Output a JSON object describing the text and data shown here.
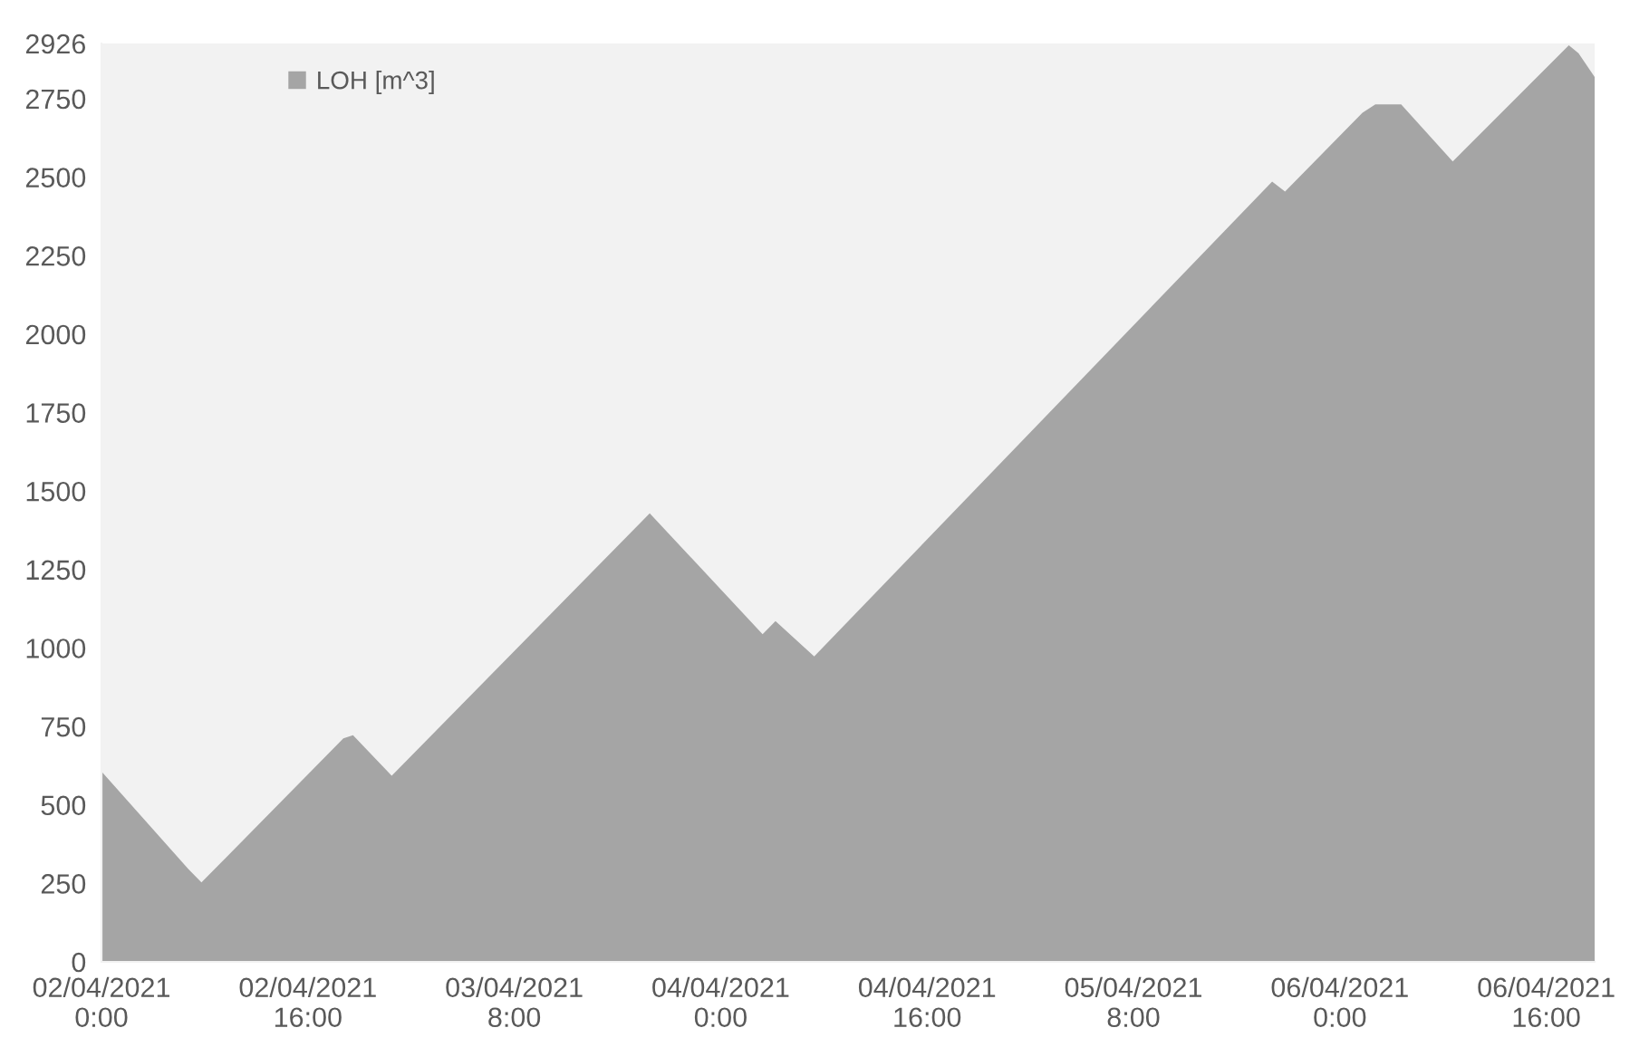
{
  "chart_data": {
    "type": "area",
    "x": [
      "2021-04-02T00:00",
      "2021-04-02T06:45",
      "2021-04-02T07:45",
      "2021-04-02T18:45",
      "2021-04-02T19:30",
      "2021-04-02T22:30",
      "2021-04-03T18:30",
      "2021-04-04T03:15",
      "2021-04-04T04:15",
      "2021-04-04T07:15",
      "2021-04-05T18:45",
      "2021-04-05T19:45",
      "2021-04-06T01:45",
      "2021-04-06T02:45",
      "2021-04-06T04:45",
      "2021-04-06T08:45",
      "2021-04-06T17:45",
      "2021-04-06T18:30",
      "2021-04-06T19:45"
    ],
    "series": [
      {
        "name": "LOH [m^3]",
        "color": "#a5a5a5",
        "values": [
          607,
          295,
          253,
          712,
          722,
          593,
          1429,
          1044,
          1086,
          973,
          2486,
          2454,
          2705,
          2732,
          2732,
          2550,
          2920,
          2895,
          2819
        ]
      }
    ],
    "xlim": [
      "2021-04-02T00:00",
      "2021-04-06T19:45"
    ],
    "xticks": [
      {
        "value": "2021-04-02T00:00",
        "label": "02/04/2021\n0:00"
      },
      {
        "value": "2021-04-02T16:00",
        "label": "02/04/2021\n16:00"
      },
      {
        "value": "2021-04-03T08:00",
        "label": "03/04/2021\n8:00"
      },
      {
        "value": "2021-04-04T00:00",
        "label": "04/04/2021\n0:00"
      },
      {
        "value": "2021-04-04T16:00",
        "label": "04/04/2021\n16:00"
      },
      {
        "value": "2021-04-05T08:00",
        "label": "05/04/2021\n8:00"
      },
      {
        "value": "2021-04-06T00:00",
        "label": "06/04/2021\n0:00"
      },
      {
        "value": "2021-04-06T16:00",
        "label": "06/04/2021\n16:00"
      }
    ],
    "ylim": [
      0,
      2926
    ],
    "yticks": [
      0,
      250,
      500,
      750,
      1000,
      1250,
      1500,
      1750,
      2000,
      2250,
      2500,
      2750,
      2926
    ],
    "grid": false,
    "legend": "top left"
  }
}
